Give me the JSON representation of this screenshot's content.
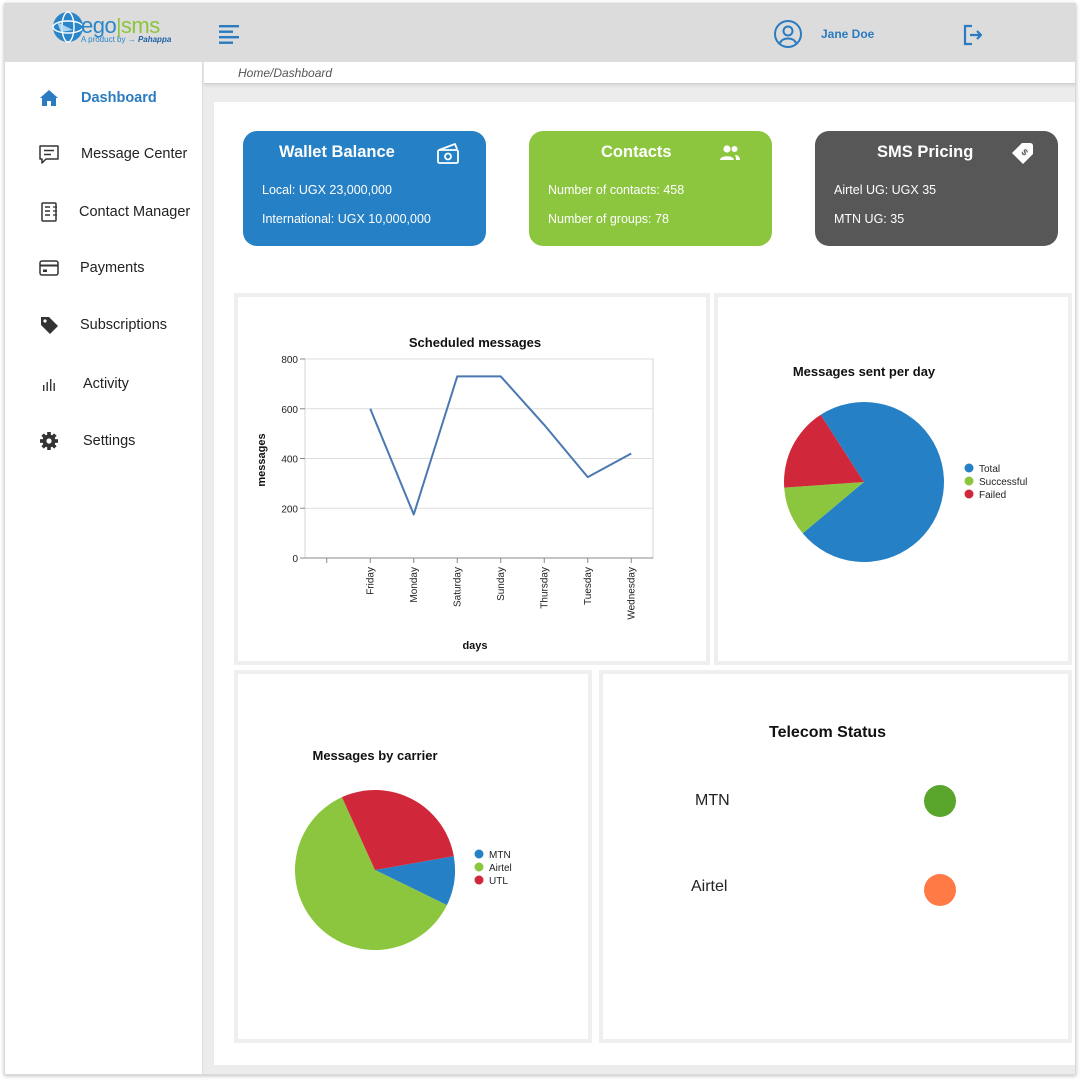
{
  "app": {
    "logo": {
      "brand_part1": "ego",
      "brand_part2": "sms",
      "tagline_prefix": "A product by",
      "tagline_company": "Pahappa"
    }
  },
  "header": {
    "user_name": "Jane Doe"
  },
  "sidebar": {
    "items": [
      {
        "label": "Dashboard",
        "icon": "home-icon",
        "active": true
      },
      {
        "label": "Message Center",
        "icon": "message-icon"
      },
      {
        "label": "Contact Manager",
        "icon": "contact-book-icon"
      },
      {
        "label": "Payments",
        "icon": "credit-card-icon"
      },
      {
        "label": "Subscriptions",
        "icon": "tag-icon"
      },
      {
        "label": "Activity",
        "icon": "bar-chart-icon"
      },
      {
        "label": "Settings",
        "icon": "gear-icon"
      }
    ]
  },
  "breadcrumb": "Home/Dashboard",
  "cards": {
    "wallet": {
      "title": "Wallet Balance",
      "icon": "money-icon",
      "line1": "Local: UGX 23,000,000",
      "line2": "International: UGX 10,000,000",
      "color": "#2680c5"
    },
    "contacts": {
      "title": "Contacts",
      "icon": "people-icon",
      "line1": "Number of contacts: 458",
      "line2": "Number of groups: 78",
      "color": "#8cc63f"
    },
    "pricing": {
      "title": "SMS Pricing",
      "icon": "price-tag-icon",
      "line1": "Airtel UG: UGX 35",
      "line2": "MTN UG: 35",
      "color": "#575757"
    }
  },
  "telecom": {
    "title": "Telecom Status",
    "items": [
      {
        "name": "MTN",
        "color": "#5aa52c"
      },
      {
        "name": "Airtel",
        "color": "#ff7a45"
      }
    ]
  },
  "chart_data": [
    {
      "type": "line",
      "title": "Scheduled messages",
      "xlabel": "days",
      "ylabel": "messages",
      "categories": [
        "",
        "Friday",
        "Monday",
        "Saturday",
        "Sunday",
        "Thursday",
        "Tuesday",
        "Wednesday"
      ],
      "values": [
        null,
        600,
        175,
        730,
        730,
        535,
        325,
        420
      ],
      "ylim": [
        0,
        800
      ],
      "yticks": [
        0,
        200,
        400,
        600,
        800
      ],
      "grid": true,
      "color": "#4a78b0"
    },
    {
      "type": "pie",
      "title": "Messages sent per day",
      "labels": [
        "Total",
        "Successful",
        "Failed"
      ],
      "values": [
        73,
        10,
        17
      ],
      "colors": [
        "#2680c5",
        "#8cc63f",
        "#d0283a"
      ],
      "legend": "right"
    },
    {
      "type": "pie",
      "title": "Messages by carrier",
      "labels": [
        "MTN",
        "Airtel",
        "UTL"
      ],
      "values": [
        10,
        61,
        29
      ],
      "colors": [
        "#2680c5",
        "#8cc63f",
        "#d0283a"
      ],
      "legend": "right"
    }
  ]
}
